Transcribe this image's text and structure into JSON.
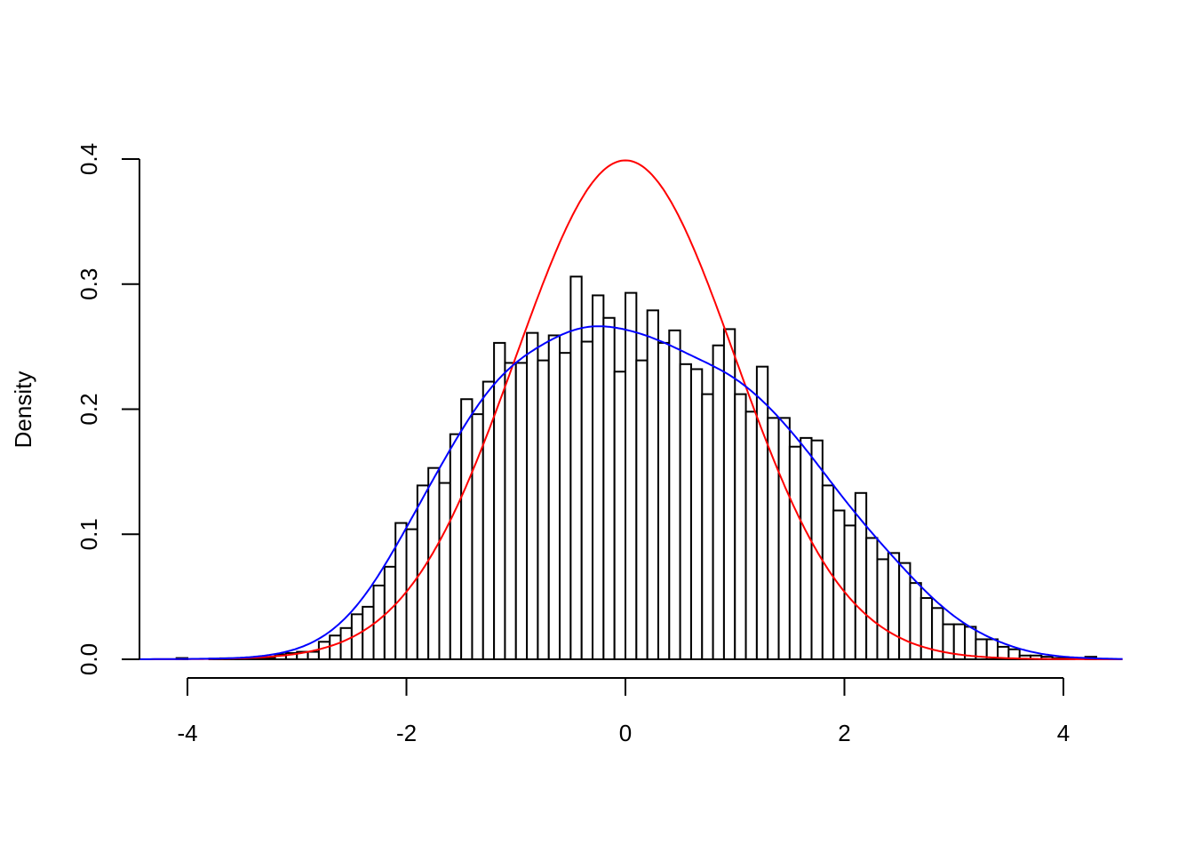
{
  "chart_data": {
    "type": "bar",
    "subtype": "histogram with density curves",
    "title": "",
    "xlabel": "",
    "ylabel": "Density",
    "xlim": [
      -4.44,
      4.54
    ],
    "ylim": [
      0,
      0.4
    ],
    "grid": false,
    "x_ticks": [
      "-4",
      "-2",
      "0",
      "2",
      "4"
    ],
    "x_tick_values": [
      -4,
      -2,
      0,
      2,
      4
    ],
    "y_ticks": [
      "0.0",
      "0.1",
      "0.2",
      "0.3",
      "0.4"
    ],
    "y_tick_values": [
      0,
      0.1,
      0.2,
      0.3,
      0.4
    ],
    "bin_start": -4.1,
    "bin_width": 0.1,
    "densities": [
      0.001,
      0,
      0,
      0.0005,
      0.0008,
      0.0005,
      0.0005,
      0.0005,
      0.001,
      0.004,
      0.005,
      0.006,
      0.006,
      0.014,
      0.019,
      0.025,
      0.036,
      0.042,
      0.059,
      0.074,
      0.109,
      0.104,
      0.139,
      0.153,
      0.141,
      0.18,
      0.208,
      0.196,
      0.222,
      0.253,
      0.237,
      0.237,
      0.261,
      0.239,
      0.259,
      0.245,
      0.306,
      0.254,
      0.291,
      0.273,
      0.23,
      0.293,
      0.239,
      0.279,
      0.253,
      0.263,
      0.236,
      0.232,
      0.212,
      0.251,
      0.264,
      0.212,
      0.198,
      0.234,
      0.193,
      0.193,
      0.17,
      0.177,
      0.175,
      0.139,
      0.119,
      0.107,
      0.133,
      0.097,
      0.08,
      0.085,
      0.077,
      0.061,
      0.049,
      0.041,
      0.028,
      0.028,
      0.026,
      0.016,
      0.016,
      0.01,
      0.008,
      0.003,
      0.003,
      0.002,
      0.001,
      0.001,
      0,
      0.002
    ],
    "bar_fill": "#ffffff",
    "bar_stroke": "#000000",
    "curves": [
      {
        "kind": "normal density",
        "mean": 0,
        "sd": 1,
        "color": "#ff0000"
      },
      {
        "kind": "kernel density estimate",
        "color": "#0000ff",
        "peak_x": -0.1,
        "peak_y": 0.269
      }
    ]
  }
}
